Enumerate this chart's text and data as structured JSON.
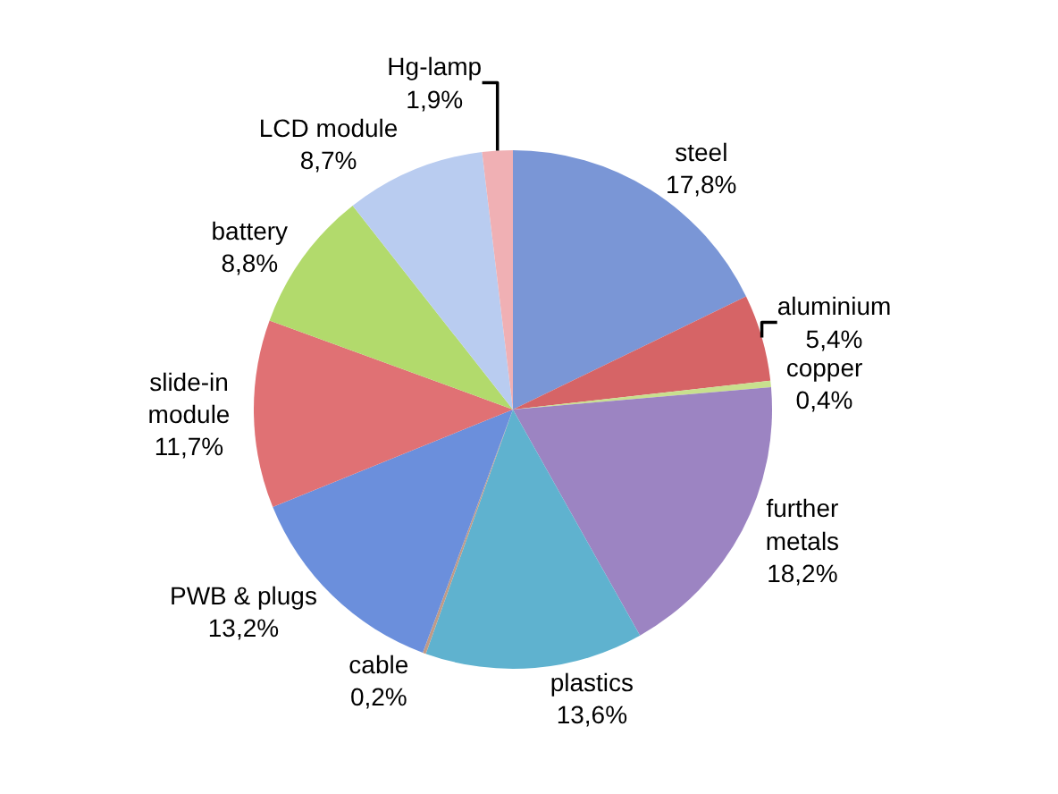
{
  "chart_data": {
    "type": "pie",
    "categories": [
      "steel",
      "aluminium",
      "copper",
      "further metals",
      "plastics",
      "cable",
      "PWB & plugs",
      "slide-in module",
      "battery",
      "LCD module",
      "Hg-lamp"
    ],
    "values": [
      17.8,
      5.4,
      0.4,
      18.2,
      13.6,
      0.2,
      13.2,
      11.7,
      8.8,
      8.7,
      1.9
    ],
    "value_labels": [
      "17,8%",
      "5,4%",
      "0,4%",
      "18,2%",
      "13,6%",
      "0,2%",
      "13,2%",
      "11,7%",
      "8,8%",
      "8,7%",
      "1,9%"
    ],
    "colors": [
      "#7a96d6",
      "#d66466",
      "#c8e08e",
      "#9c84c2",
      "#5fb2cf",
      "#c09a86",
      "#6b8fdc",
      "#e07174",
      "#b2da6c",
      "#b9ccf0",
      "#f0b0b4"
    ]
  }
}
